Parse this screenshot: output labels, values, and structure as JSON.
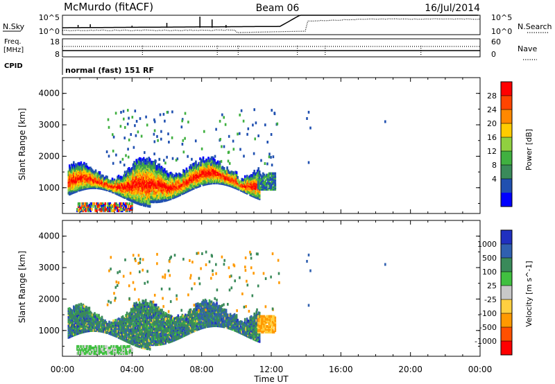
{
  "header": {
    "station": "McMurdo (fitACF)",
    "beam": "Beam 06",
    "date": "16/Jul/2014"
  },
  "top_panel": {
    "left_label": "N.Sky",
    "right_label": "N.Search",
    "left_ticks": [
      "10^5",
      "10^0"
    ],
    "right_ticks": [
      "10^5",
      "10^0"
    ]
  },
  "freq_panel": {
    "left_label_1": "Freq.",
    "left_label_2": "[MHz]",
    "cpid_label": "CPID",
    "right_label": "Nave",
    "left_ticks": [
      "18",
      "8"
    ],
    "right_ticks": [
      "60",
      "0"
    ]
  },
  "cpid_text": "normal (fast) 151 RF",
  "colors": {
    "power": [
      "#0000ff",
      "#2050b0",
      "#3a8a5a",
      "#40b040",
      "#90d040",
      "#ffcc00",
      "#ff8800",
      "#ff4400",
      "#ff0000"
    ],
    "velocity": [
      "#2030c0",
      "#3060b0",
      "#3a8a5a",
      "#40c040",
      "#c8c8c8",
      "#ffd040",
      "#ff9900",
      "#ff5000",
      "#ff0000"
    ]
  },
  "chart_data": [
    {
      "type": "heatmap",
      "name": "power",
      "ylabel": "Slant Range [km]",
      "colorbar_label": "Power [dB]",
      "colorbar_ticks": [
        "28",
        "24",
        "20",
        "16",
        "12",
        "8",
        "4"
      ],
      "x_ticks": [
        "00:00",
        "04:00",
        "08:00",
        "12:00",
        "16:00",
        "20:00",
        "00:00"
      ],
      "y_ticks": [
        "4000",
        "3000",
        "2000",
        "1000"
      ],
      "xlim": [
        0,
        24
      ],
      "ylim": [
        180,
        4500
      ]
    },
    {
      "type": "heatmap",
      "name": "velocity",
      "ylabel": "Slant Range [km]",
      "colorbar_label": "Velocity [m s^-1]",
      "colorbar_ticks": [
        "1000",
        "500",
        "100",
        "25",
        "-25",
        "-100",
        "-500",
        "-1000"
      ],
      "x_ticks": [
        "00:00",
        "04:00",
        "08:00",
        "12:00",
        "16:00",
        "20:00",
        "00:00"
      ],
      "y_ticks": [
        "4000",
        "3000",
        "2000",
        "1000"
      ],
      "xlim": [
        0,
        24
      ],
      "ylim": [
        180,
        4500
      ],
      "xlabel": "Time UT"
    }
  ]
}
